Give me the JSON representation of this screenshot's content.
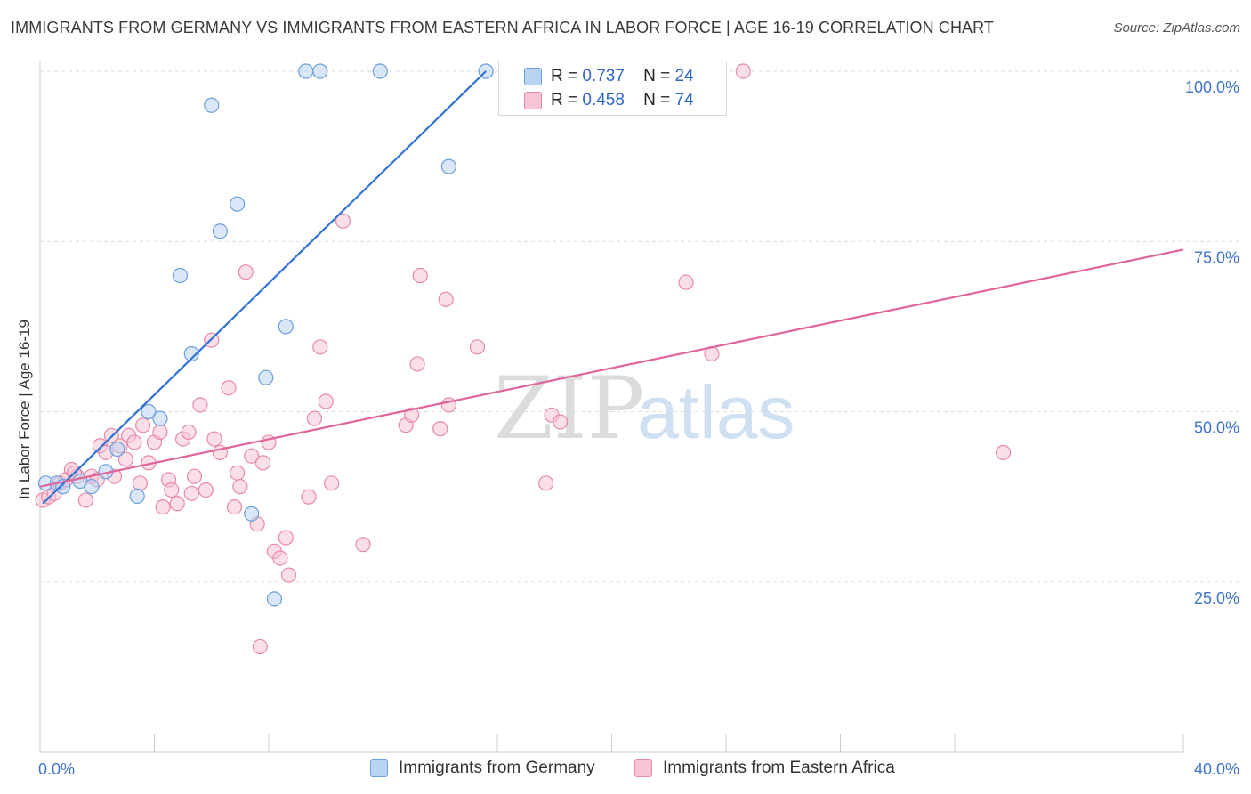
{
  "title": "IMMIGRANTS FROM GERMANY VS IMMIGRANTS FROM EASTERN AFRICA IN LABOR FORCE | AGE 16-19 CORRELATION CHART",
  "source": "Source: ZipAtlas.com",
  "watermark": {
    "zip": "ZIP",
    "atlas": "atlas"
  },
  "colors": {
    "germany_fill": "#b9d3f2",
    "germany_stroke": "#6d9fdc",
    "germany_line": "#2f72d6",
    "eafrica_fill": "#f7c4d3",
    "eafrica_stroke": "#e889a8",
    "eafrica_line": "#e0649a",
    "tick_label": "#3f74c9",
    "grid": "#dddddd"
  },
  "stats_box": {
    "rows": [
      {
        "series": "Immigrants from Germany",
        "r_label": "R =",
        "r_value": "0.737",
        "n_label": "N =",
        "n_value": "24"
      },
      {
        "series": "Immigrants from Eastern Africa",
        "r_label": "R =",
        "r_value": "0.458",
        "n_label": "N =",
        "n_value": "74"
      }
    ]
  },
  "chart_data": {
    "type": "scatter",
    "title": "IMMIGRANTS FROM GERMANY VS IMMIGRANTS FROM EASTERN AFRICA IN LABOR FORCE | AGE 16-19 CORRELATION CHART",
    "xlabel": "",
    "ylabel": "In Labor Force | Age 16-19",
    "xlim": [
      0,
      40
    ],
    "ylim": [
      0,
      100
    ],
    "x_tick_labels": [
      "0.0%",
      "40.0%"
    ],
    "y_ticks": [
      25,
      50,
      75,
      100
    ],
    "y_tick_labels": [
      "25.0%",
      "50.0%",
      "75.0%",
      "100.0%"
    ],
    "grid": true,
    "legend_position": "bottom",
    "series": [
      {
        "name": "Immigrants from Germany",
        "trend": {
          "x": [
            0.1,
            15.6
          ],
          "y": [
            36.5,
            100.0
          ]
        },
        "points": [
          [
            0.2,
            39.5
          ],
          [
            0.6,
            39.5
          ],
          [
            0.8,
            39.0
          ],
          [
            1.4,
            39.8
          ],
          [
            1.8,
            39.0
          ],
          [
            2.3,
            41.2
          ],
          [
            2.7,
            44.5
          ],
          [
            3.4,
            37.6
          ],
          [
            3.8,
            50.0
          ],
          [
            4.2,
            49.0
          ],
          [
            4.9,
            70.0
          ],
          [
            5.3,
            58.5
          ],
          [
            6.0,
            95.0
          ],
          [
            6.3,
            76.5
          ],
          [
            6.9,
            80.5
          ],
          [
            7.4,
            35.0
          ],
          [
            7.9,
            55.0
          ],
          [
            8.2,
            22.5
          ],
          [
            8.6,
            62.5
          ],
          [
            9.3,
            100.0
          ],
          [
            9.8,
            100.0
          ],
          [
            11.9,
            100.0
          ],
          [
            14.3,
            86.0
          ],
          [
            15.6,
            100.0
          ]
        ]
      },
      {
        "name": "Immigrants from Eastern Africa",
        "trend": {
          "x": [
            0.0,
            40.0
          ],
          "y": [
            39.0,
            73.8
          ]
        },
        "points": [
          [
            0.1,
            37.0
          ],
          [
            0.3,
            37.5
          ],
          [
            0.5,
            38.0
          ],
          [
            0.7,
            39.5
          ],
          [
            0.9,
            40.0
          ],
          [
            1.1,
            41.5
          ],
          [
            1.3,
            40.5
          ],
          [
            1.6,
            37.0
          ],
          [
            1.8,
            40.5
          ],
          [
            2.0,
            40.0
          ],
          [
            2.1,
            45.0
          ],
          [
            2.3,
            44.0
          ],
          [
            2.6,
            40.5
          ],
          [
            2.8,
            45.0
          ],
          [
            3.0,
            43.0
          ],
          [
            3.1,
            46.5
          ],
          [
            3.3,
            45.5
          ],
          [
            3.5,
            39.5
          ],
          [
            3.6,
            48.0
          ],
          [
            3.8,
            42.5
          ],
          [
            4.0,
            45.5
          ],
          [
            4.2,
            47.0
          ],
          [
            4.3,
            36.0
          ],
          [
            4.5,
            40.0
          ],
          [
            4.6,
            38.5
          ],
          [
            4.8,
            36.5
          ],
          [
            5.0,
            46.0
          ],
          [
            5.2,
            47.0
          ],
          [
            5.3,
            38.0
          ],
          [
            5.4,
            40.5
          ],
          [
            5.6,
            51.0
          ],
          [
            5.8,
            38.5
          ],
          [
            6.0,
            60.5
          ],
          [
            6.1,
            46.0
          ],
          [
            6.3,
            44.0
          ],
          [
            6.6,
            53.5
          ],
          [
            6.8,
            36.0
          ],
          [
            6.9,
            41.0
          ],
          [
            7.0,
            39.0
          ],
          [
            7.2,
            70.5
          ],
          [
            7.4,
            43.5
          ],
          [
            7.6,
            33.5
          ],
          [
            7.8,
            42.5
          ],
          [
            8.0,
            45.5
          ],
          [
            8.2,
            29.5
          ],
          [
            8.4,
            28.5
          ],
          [
            8.6,
            31.5
          ],
          [
            8.7,
            26.0
          ],
          [
            9.4,
            37.5
          ],
          [
            9.6,
            49.0
          ],
          [
            9.8,
            59.5
          ],
          [
            10.0,
            51.5
          ],
          [
            10.2,
            39.5
          ],
          [
            10.6,
            78.0
          ],
          [
            11.3,
            30.5
          ],
          [
            12.8,
            48.0
          ],
          [
            13.0,
            49.5
          ],
          [
            13.2,
            57.0
          ],
          [
            13.3,
            70.0
          ],
          [
            14.0,
            47.5
          ],
          [
            14.2,
            66.5
          ],
          [
            14.3,
            51.0
          ],
          [
            15.3,
            59.5
          ],
          [
            17.7,
            39.5
          ],
          [
            17.9,
            49.5
          ],
          [
            18.2,
            48.5
          ],
          [
            22.6,
            69.0
          ],
          [
            23.5,
            58.5
          ],
          [
            24.6,
            100.0
          ],
          [
            33.7,
            44.0
          ],
          [
            7.7,
            15.5
          ],
          [
            16.6,
            100.0
          ],
          [
            2.5,
            46.5
          ],
          [
            1.2,
            41.0
          ]
        ]
      }
    ]
  },
  "legend": {
    "items": [
      {
        "label": "Immigrants from Germany"
      },
      {
        "label": "Immigrants from Eastern Africa"
      }
    ]
  }
}
